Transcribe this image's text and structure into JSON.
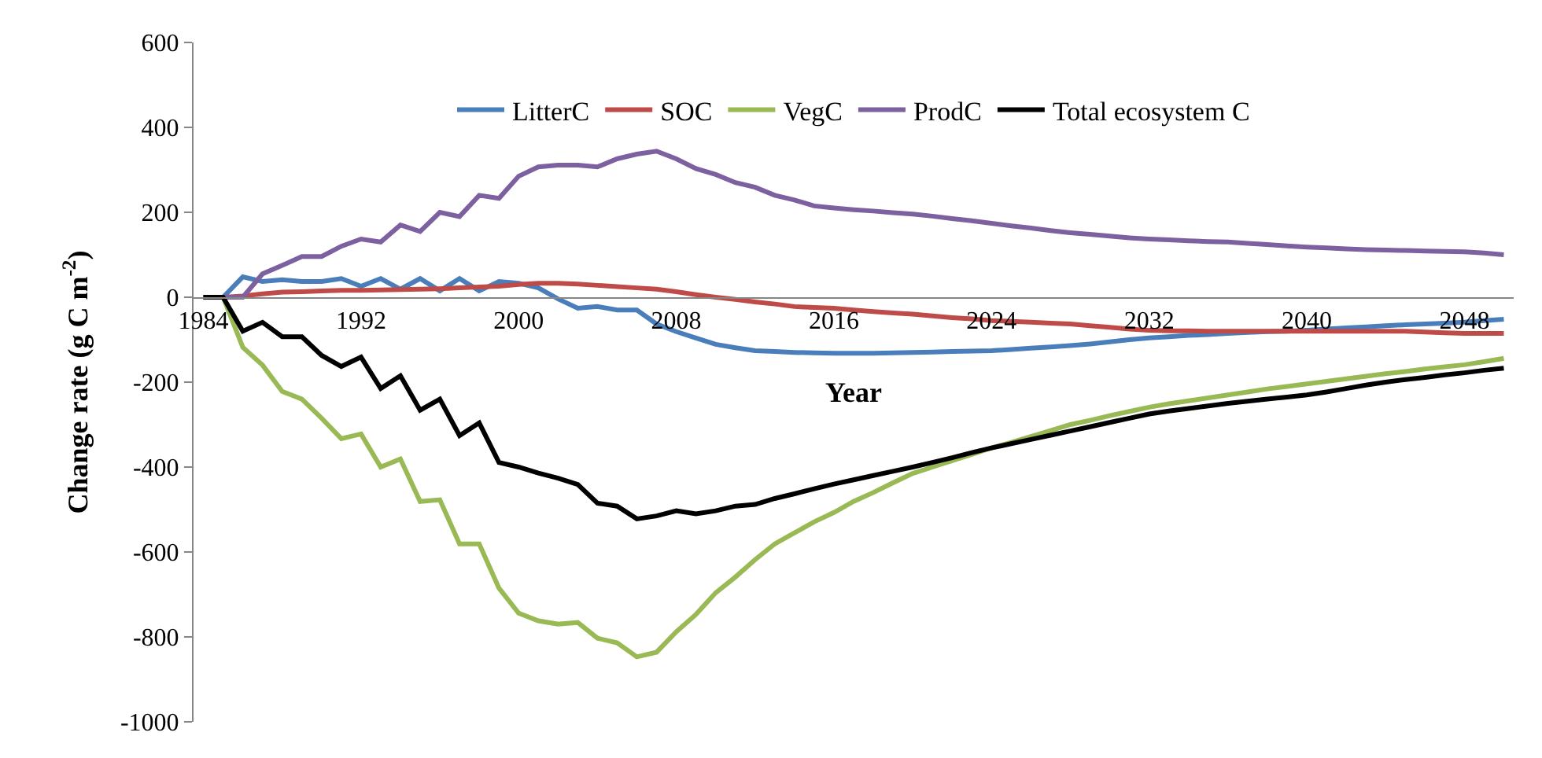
{
  "chart_data": {
    "type": "line",
    "xlabel": "Year",
    "ylabel": "Change rate (g C m$^{-2}$)",
    "categories": [
      "1984",
      null,
      null,
      null,
      null,
      null,
      null,
      null,
      "1992",
      null,
      null,
      null,
      null,
      null,
      null,
      null,
      "2000",
      null,
      null,
      null,
      null,
      null,
      null,
      null,
      "2008",
      null,
      null,
      null,
      null,
      null,
      null,
      null,
      "2016",
      null,
      null,
      null,
      null,
      null,
      null,
      null,
      "2024",
      null,
      null,
      null,
      null,
      null,
      null,
      null,
      "2032",
      null,
      null,
      null,
      null,
      null,
      null,
      null,
      "2040",
      null,
      null,
      null,
      null,
      null,
      null,
      null,
      "2048",
      null,
      null
    ],
    "ylim": [
      -1000,
      600
    ],
    "yticks": [
      -1000,
      -800,
      -600,
      -400,
      -200,
      0,
      200,
      400,
      600
    ],
    "legend": "top",
    "marker": "none",
    "line_style": "solid",
    "series": [
      {
        "name": "LitterC",
        "color": "#4a7ebb",
        "values": [
          0,
          0,
          48,
          37,
          41,
          37,
          37,
          44,
          26,
          44,
          19,
          44,
          15,
          44,
          15,
          37,
          33,
          22,
          -4,
          -26,
          -22,
          -30,
          -30,
          -63,
          -81,
          -96,
          -111,
          -119,
          -126,
          -128,
          -130,
          -131,
          -132,
          -132,
          -132,
          -131,
          -130,
          -129,
          -128,
          -127,
          -126,
          -123,
          -120,
          -117,
          -114,
          -110,
          -105,
          -100,
          -96,
          -93,
          -90,
          -88,
          -85,
          -83,
          -81,
          -80,
          -78,
          -75,
          -72,
          -70,
          -67,
          -65,
          -63,
          -61,
          -59,
          -55,
          -52
        ]
      },
      {
        "name": "SOC",
        "color": "#be4b48",
        "values": [
          0,
          0,
          3,
          8,
          12,
          13,
          15,
          16,
          16,
          17,
          18,
          19,
          20,
          22,
          24,
          26,
          30,
          33,
          33,
          31,
          28,
          25,
          22,
          19,
          13,
          6,
          0,
          -5,
          -11,
          -16,
          -22,
          -24,
          -26,
          -30,
          -34,
          -37,
          -40,
          -44,
          -48,
          -51,
          -55,
          -57,
          -59,
          -61,
          -63,
          -67,
          -71,
          -75,
          -78,
          -79,
          -79,
          -80,
          -80,
          -80,
          -80,
          -80,
          -80,
          -80,
          -80,
          -80,
          -80,
          -80,
          -82,
          -84,
          -85,
          -85,
          -85
        ]
      },
      {
        "name": "VegC",
        "color": "#98b954",
        "values": [
          0,
          0,
          -118,
          -160,
          -222,
          -240,
          -285,
          -333,
          -322,
          -400,
          -381,
          -481,
          -477,
          -581,
          -581,
          -685,
          -744,
          -762,
          -770,
          -766,
          -803,
          -814,
          -847,
          -836,
          -788,
          -747,
          -696,
          -659,
          -618,
          -581,
          -555,
          -529,
          -507,
          -481,
          -460,
          -437,
          -415,
          -400,
          -385,
          -370,
          -355,
          -342,
          -328,
          -314,
          -300,
          -290,
          -279,
          -269,
          -259,
          -251,
          -244,
          -237,
          -230,
          -223,
          -216,
          -210,
          -204,
          -198,
          -192,
          -186,
          -180,
          -175,
          -169,
          -164,
          -159,
          -152,
          -144
        ]
      },
      {
        "name": "ProdC",
        "color": "#7d60a0",
        "values": [
          0,
          0,
          0,
          55,
          75,
          96,
          96,
          120,
          137,
          130,
          170,
          155,
          200,
          190,
          240,
          233,
          285,
          307,
          311,
          311,
          307,
          326,
          337,
          344,
          326,
          303,
          289,
          270,
          259,
          240,
          229,
          215,
          210,
          206,
          203,
          199,
          196,
          191,
          185,
          180,
          174,
          168,
          163,
          157,
          152,
          148,
          144,
          140,
          137,
          135,
          133,
          131,
          130,
          127,
          124,
          121,
          118,
          116,
          114,
          112,
          111,
          110,
          109,
          108,
          107,
          104,
          100
        ]
      },
      {
        "name": "Total ecosystem C",
        "color": "#000000",
        "values": [
          0,
          0,
          -80,
          -59,
          -93,
          -93,
          -137,
          -163,
          -141,
          -215,
          -185,
          -266,
          -240,
          -326,
          -296,
          -389,
          -400,
          -414,
          -426,
          -441,
          -485,
          -492,
          -522,
          -515,
          -503,
          -510,
          -503,
          -492,
          -488,
          -474,
          -463,
          -451,
          -440,
          -430,
          -420,
          -410,
          -400,
          -389,
          -378,
          -366,
          -355,
          -345,
          -335,
          -325,
          -315,
          -305,
          -295,
          -285,
          -275,
          -268,
          -262,
          -256,
          -250,
          -245,
          -240,
          -235,
          -230,
          -223,
          -215,
          -207,
          -200,
          -194,
          -189,
          -183,
          -178,
          -172,
          -167
        ]
      }
    ]
  }
}
